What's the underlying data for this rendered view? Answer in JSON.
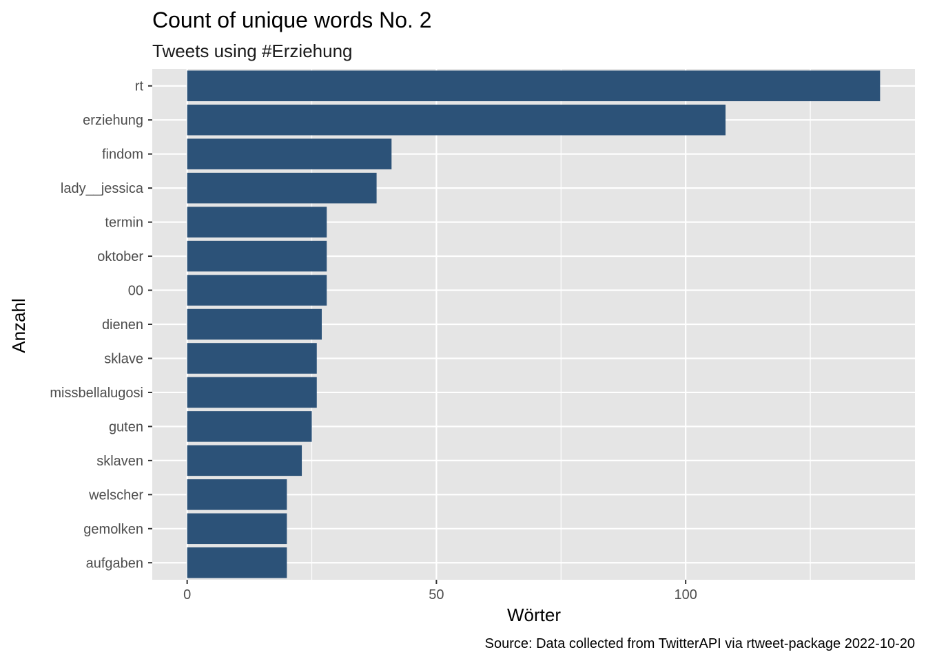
{
  "chart_data": {
    "type": "bar",
    "orientation": "horizontal",
    "title": "Count of unique words No. 2",
    "subtitle": "Tweets using #Erziehung",
    "xlabel": "Wörter",
    "ylabel": "Anzahl",
    "caption": "Source: Data collected from TwitterAPI via rtweet-package  2022-10-20",
    "categories": [
      "rt",
      "erziehung",
      "findom",
      "lady__jessica",
      "termin",
      "oktober",
      "00",
      "dienen",
      "sklave",
      "missbellalugosi",
      "guten",
      "sklaven",
      "welscher",
      "gemolken",
      "aufgaben"
    ],
    "values": [
      139,
      108,
      41,
      38,
      28,
      28,
      28,
      27,
      26,
      26,
      25,
      23,
      20,
      20,
      20
    ],
    "xlim": [
      -7,
      146
    ],
    "xticks": [
      0,
      50,
      100
    ],
    "grid": true,
    "legend": "none",
    "colors": {
      "bar": "#2c5278",
      "panel": "#e5e5e5",
      "grid": "#ffffff",
      "tick": "#333333"
    }
  }
}
